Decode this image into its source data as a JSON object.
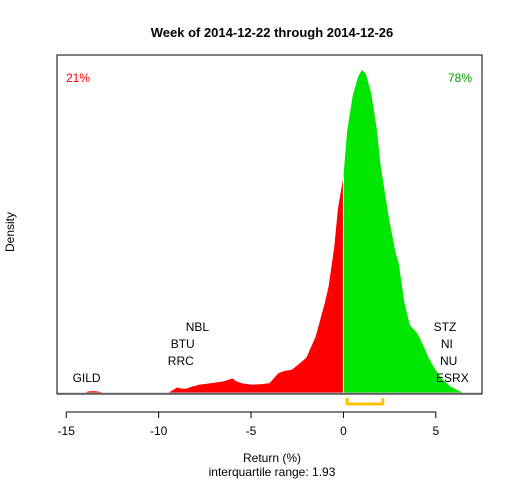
{
  "chart_data": {
    "type": "area",
    "title": "Week of 2014-12-22 through 2014-12-26",
    "xlabel": "Return (%)",
    "ylabel": "Density",
    "subtitle": "interquartile range: 1.93",
    "xlim": [
      -15.5,
      7.5
    ],
    "ylim": [
      0,
      1
    ],
    "xticks": [
      -15,
      -10,
      -5,
      0,
      5
    ],
    "negative_share": "21%",
    "positive_share": "78%",
    "colors": {
      "negative": "#ff0000",
      "positive": "#00e600",
      "iqr": "#ffc000",
      "neg_text": "#ff0000",
      "pos_text": "#00a000"
    },
    "iqr_range": [
      0.2,
      2.13
    ],
    "density": {
      "x": [
        -14.0,
        -13.8,
        -13.5,
        -13.2,
        -13.0,
        -9.5,
        -9.2,
        -9.0,
        -8.8,
        -8.5,
        -8.2,
        -8.0,
        -7.8,
        -7.5,
        -7.0,
        -6.5,
        -6.0,
        -5.8,
        -5.5,
        -5.0,
        -4.5,
        -4.0,
        -3.7,
        -3.5,
        -3.2,
        -3.0,
        -2.8,
        -2.5,
        -2.0,
        -1.5,
        -1.0,
        -0.8,
        -0.5,
        -0.3,
        0.0,
        0.2,
        0.5,
        0.8,
        1.0,
        1.2,
        1.5,
        1.8,
        2.0,
        2.3,
        2.5,
        2.8,
        3.0,
        3.3,
        3.6,
        4.0,
        4.3,
        4.6,
        5.0,
        5.4,
        5.8,
        6.2,
        6.5
      ],
      "y": [
        0.0,
        0.005,
        0.006,
        0.004,
        0.0,
        0.0,
        0.01,
        0.017,
        0.014,
        0.013,
        0.02,
        0.022,
        0.026,
        0.028,
        0.032,
        0.036,
        0.045,
        0.036,
        0.03,
        0.026,
        0.027,
        0.03,
        0.05,
        0.062,
        0.068,
        0.07,
        0.072,
        0.085,
        0.11,
        0.175,
        0.28,
        0.33,
        0.45,
        0.57,
        0.67,
        0.81,
        0.92,
        0.98,
        1.0,
        0.99,
        0.93,
        0.82,
        0.71,
        0.6,
        0.53,
        0.44,
        0.4,
        0.28,
        0.21,
        0.185,
        0.15,
        0.11,
        0.07,
        0.04,
        0.02,
        0.008,
        0.0
      ]
    },
    "annotations": [
      {
        "text": "GILD",
        "x": -13.9,
        "row": 0
      },
      {
        "text": "RRC",
        "x": -8.8,
        "row": 1
      },
      {
        "text": "BTU",
        "x": -8.7,
        "row": 2
      },
      {
        "text": "NBL",
        "x": -7.9,
        "row": 3
      },
      {
        "text": "ESRX",
        "x": 5.9,
        "row": 0
      },
      {
        "text": "NU",
        "x": 5.7,
        "row": 1
      },
      {
        "text": "NI",
        "x": 5.6,
        "row": 2
      },
      {
        "text": "STZ",
        "x": 5.5,
        "row": 3
      }
    ]
  }
}
